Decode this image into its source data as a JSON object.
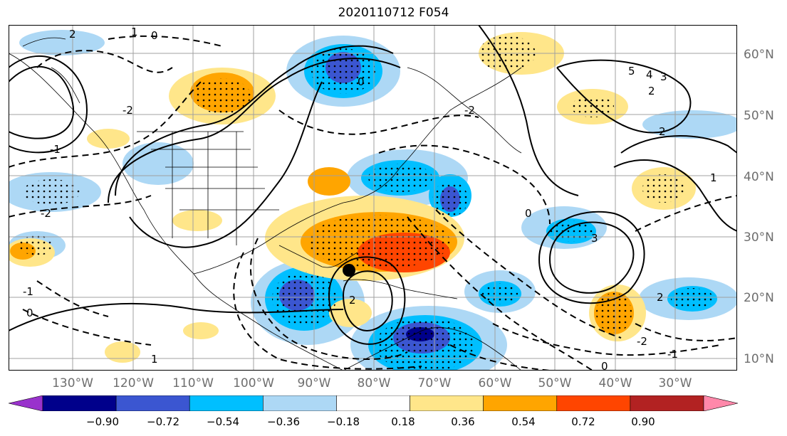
{
  "title": "2020110712 F054",
  "lon_labels": [
    "130°W",
    "120°W",
    "110°W",
    "100°W",
    "90°W",
    "80°W",
    "70°W",
    "60°W",
    "50°W",
    "40°W",
    "30°W"
  ],
  "lat_labels": [
    "60°N",
    "50°N",
    "40°N",
    "30°N",
    "20°N",
    "10°N"
  ],
  "colorbar": {
    "ticks": [
      "−0.90",
      "−0.72",
      "−0.54",
      "−0.36",
      "−0.18",
      "0.18",
      "0.36",
      "0.54",
      "0.72",
      "0.90"
    ],
    "colors": [
      "#9932cc",
      "#00008b",
      "#3b56d1",
      "#00bfff",
      "#add8f5",
      "#ffffff",
      "#ffe68a",
      "#ffa500",
      "#ff4500",
      "#b22222",
      "#ff88aa"
    ]
  },
  "contour_labels": [
    "2",
    "1",
    "0",
    "-2",
    "-1",
    "5",
    "4",
    "3",
    "2",
    "1",
    "0",
    "-2",
    "2",
    "0",
    "-2",
    "-1",
    "2",
    "1",
    "0",
    "3",
    "2",
    "-2",
    "-1",
    "0"
  ],
  "marker": "storm-center-dot"
}
